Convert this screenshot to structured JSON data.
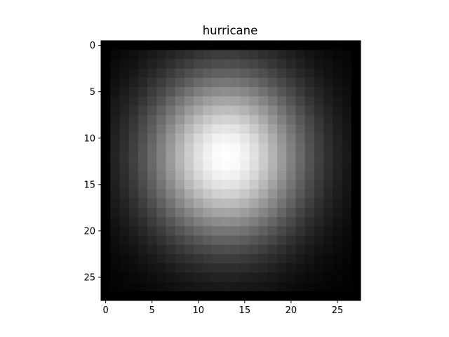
{
  "chart_data": {
    "type": "heatmap",
    "title": "hurricane",
    "xlabel": "",
    "ylabel": "",
    "colormap": "gray",
    "grid": false,
    "shape": [
      28,
      28
    ],
    "xlim": [
      -0.5,
      27.5
    ],
    "ylim": [
      27.5,
      -0.5
    ],
    "xticks": [
      0,
      5,
      10,
      15,
      20,
      25
    ],
    "yticks": [
      0,
      5,
      10,
      15,
      20,
      25
    ],
    "image_model": {
      "description": "28x28 grayscale intensity (0 = black, 1 = white): soft bright blob centred near column 13, row 12; a thin dark border around the edges",
      "center_col": 13.0,
      "center_row": 12.0,
      "sigma_col": 6.3,
      "sigma_row": 6.8,
      "peak": 1.0,
      "border_value": 0.0
    }
  }
}
